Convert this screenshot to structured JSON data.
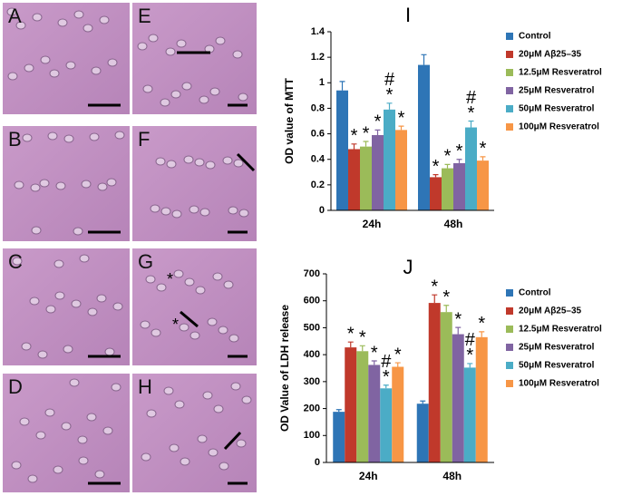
{
  "panels": [
    {
      "label": "A"
    },
    {
      "label": "E"
    },
    {
      "label": "B"
    },
    {
      "label": "F"
    },
    {
      "label": "C"
    },
    {
      "label": "G",
      "marks": [
        "*",
        "*"
      ]
    },
    {
      "label": "D"
    },
    {
      "label": "H"
    }
  ],
  "chart_data": [
    {
      "type": "bar",
      "title": "I",
      "y_label": "OD value of MTT",
      "categories": [
        "24h",
        "48h"
      ],
      "ylim": [
        0,
        1.4
      ],
      "yticks": [
        0,
        0.2,
        0.4,
        0.6,
        0.8,
        1,
        1.2,
        1.4
      ],
      "series": [
        {
          "name": "Control",
          "color": "#2e75b6",
          "values": [
            0.94,
            1.14
          ],
          "errors": [
            0.07,
            0.08
          ]
        },
        {
          "name": "20μM Aβ25–35",
          "color": "#c0392b",
          "values": [
            0.48,
            0.26
          ],
          "errors": [
            0.04,
            0.02
          ],
          "annotations": [
            [
              "*"
            ],
            [
              "*"
            ]
          ]
        },
        {
          "name": "12.5μM Resveratrol",
          "color": "#9bbb59",
          "values": [
            0.5,
            0.33
          ],
          "errors": [
            0.04,
            0.03
          ],
          "annotations": [
            [
              "*"
            ],
            [
              "*"
            ]
          ]
        },
        {
          "name": "25μM Resveratrol",
          "color": "#8064a2",
          "values": [
            0.59,
            0.37
          ],
          "errors": [
            0.04,
            0.03
          ],
          "annotations": [
            [
              "*"
            ],
            [
              "*"
            ]
          ]
        },
        {
          "name": "50μM Resveratrol",
          "color": "#4bacc6",
          "values": [
            0.79,
            0.65
          ],
          "errors": [
            0.05,
            0.05
          ],
          "annotations": [
            [
              "#",
              "*"
            ],
            [
              "#",
              "*"
            ]
          ]
        },
        {
          "name": "100μM Resveratrol",
          "color": "#f79646",
          "values": [
            0.63,
            0.39
          ],
          "errors": [
            0.03,
            0.03
          ],
          "annotations": [
            [
              "*"
            ],
            [
              "*"
            ]
          ]
        }
      ]
    },
    {
      "type": "bar",
      "title": "J",
      "y_label": "OD Value of LDH release",
      "categories": [
        "24h",
        "48h"
      ],
      "ylim": [
        0,
        700
      ],
      "yticks": [
        0,
        100,
        200,
        300,
        400,
        500,
        600,
        700
      ],
      "series": [
        {
          "name": "Control",
          "color": "#2e75b6",
          "values": [
            188,
            218
          ],
          "errors": [
            8,
            10
          ]
        },
        {
          "name": "20μM Aβ25–35",
          "color": "#c0392b",
          "values": [
            427,
            592
          ],
          "errors": [
            20,
            30
          ],
          "annotations": [
            [
              "*"
            ],
            [
              "*"
            ]
          ]
        },
        {
          "name": "12.5μM Resveratrol",
          "color": "#9bbb59",
          "values": [
            413,
            558
          ],
          "errors": [
            20,
            25
          ],
          "annotations": [
            [
              "*"
            ],
            [
              "*"
            ]
          ]
        },
        {
          "name": "25μM Resveratrol",
          "color": "#8064a2",
          "values": [
            362,
            476
          ],
          "errors": [
            15,
            25
          ],
          "annotations": [
            [
              "*"
            ],
            [
              "*"
            ]
          ]
        },
        {
          "name": "50μM Resveratrol",
          "color": "#4bacc6",
          "values": [
            275,
            352
          ],
          "errors": [
            12,
            15
          ],
          "annotations": [
            [
              "#",
              "*"
            ],
            [
              "#",
              "*"
            ]
          ]
        },
        {
          "name": "100μM Resveratrol",
          "color": "#f79646",
          "values": [
            355,
            465
          ],
          "errors": [
            15,
            20
          ],
          "annotations": [
            [
              "*"
            ],
            [
              "*"
            ]
          ]
        }
      ]
    }
  ]
}
